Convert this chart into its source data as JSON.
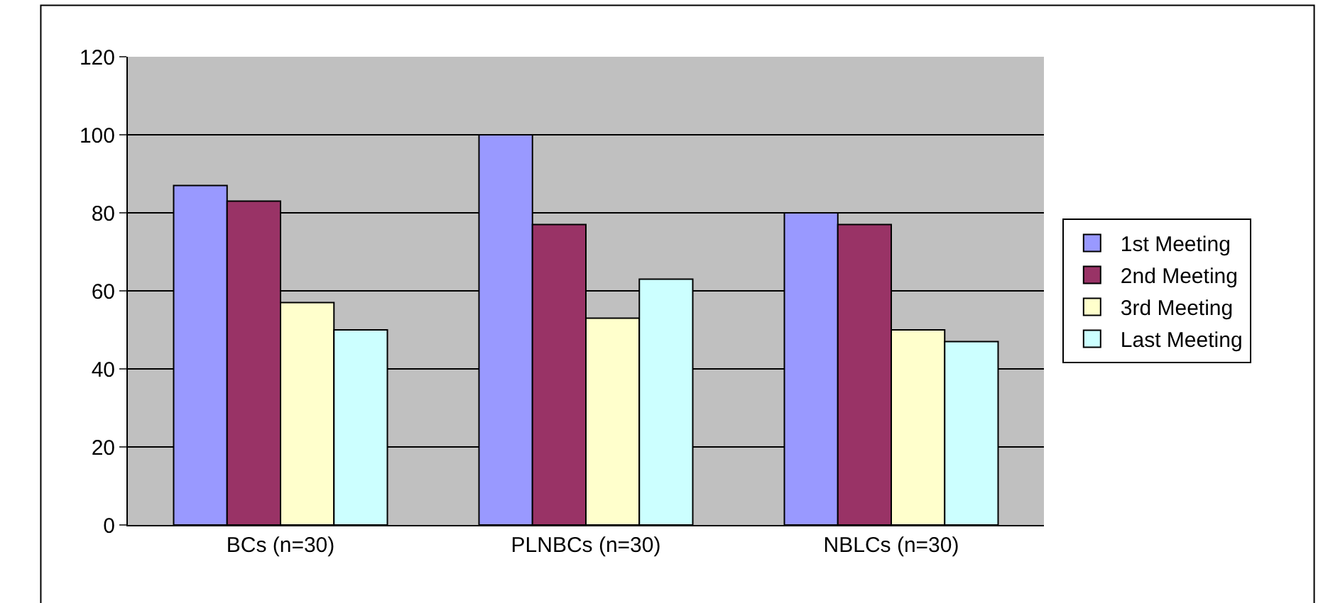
{
  "chart_data": {
    "type": "bar",
    "categories": [
      "BCs (n=30)",
      "PLNBCs (n=30)",
      "NBLCs (n=30)"
    ],
    "series": [
      {
        "name": "1st Meeting",
        "color": "#9999ff",
        "values": [
          87,
          100,
          80
        ]
      },
      {
        "name": "2nd Meeting",
        "color": "#993366",
        "values": [
          83,
          77,
          77
        ]
      },
      {
        "name": "3rd Meeting",
        "color": "#ffffcc",
        "values": [
          57,
          53,
          50
        ]
      },
      {
        "name": "Last Meeting",
        "color": "#ccffff",
        "values": [
          50,
          63,
          47
        ]
      }
    ],
    "ylim": [
      0,
      120
    ],
    "yticks": [
      0,
      20,
      40,
      60,
      80,
      100,
      120
    ],
    "grid": "y",
    "legend": "right"
  }
}
